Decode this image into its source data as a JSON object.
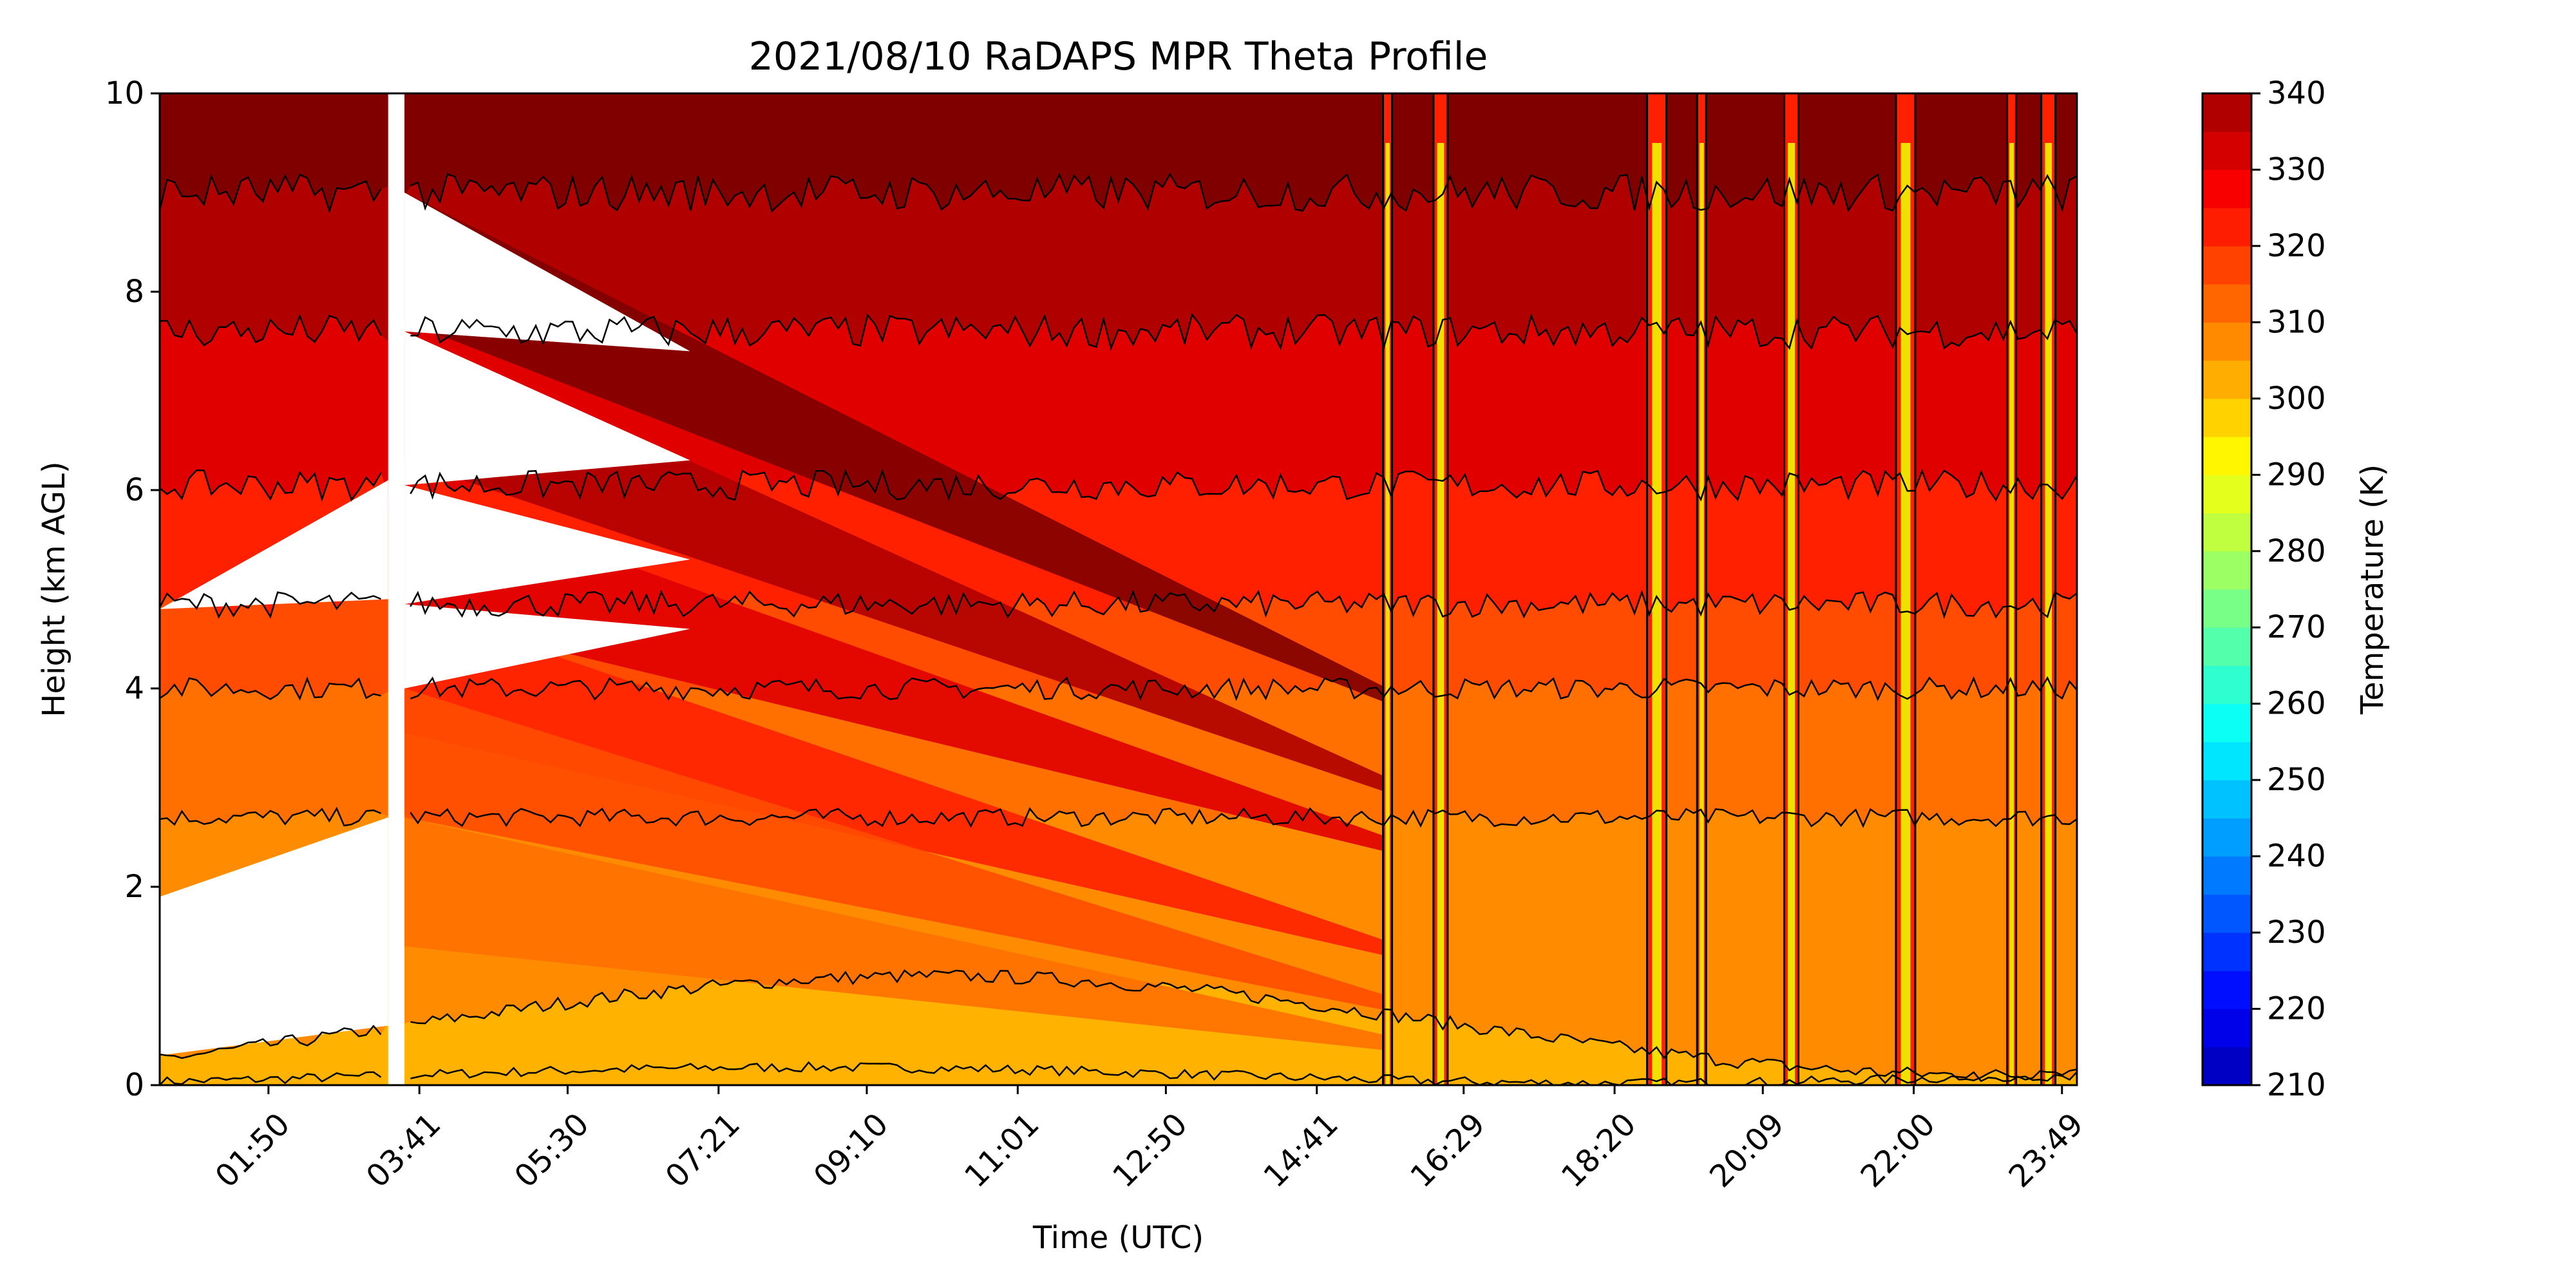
{
  "chart_data": {
    "type": "heatmap",
    "title": "2021/08/10 RaDAPS MPR Theta Profile",
    "xlabel": "Time (UTC)",
    "ylabel": "Height (km AGL)",
    "xlim_hours": [
      0.5,
      24.0
    ],
    "ylim": [
      0,
      10
    ],
    "x_ticks": [
      {
        "hour": 1.833,
        "label": "01:50"
      },
      {
        "hour": 3.683,
        "label": "03:41"
      },
      {
        "hour": 5.5,
        "label": "05:30"
      },
      {
        "hour": 7.35,
        "label": "07:21"
      },
      {
        "hour": 9.167,
        "label": "09:10"
      },
      {
        "hour": 11.017,
        "label": "11:01"
      },
      {
        "hour": 12.833,
        "label": "12:50"
      },
      {
        "hour": 14.683,
        "label": "14:41"
      },
      {
        "hour": 16.483,
        "label": "16:29"
      },
      {
        "hour": 18.333,
        "label": "18:20"
      },
      {
        "hour": 20.15,
        "label": "20:09"
      },
      {
        "hour": 22.0,
        "label": "22:00"
      },
      {
        "hour": 23.817,
        "label": "23:49"
      }
    ],
    "y_ticks": [
      "0",
      "2",
      "4",
      "6",
      "8",
      "10"
    ],
    "y_tick_values": [
      0,
      2,
      4,
      6,
      8,
      10
    ],
    "colorbar": {
      "label": "Temperature (K)",
      "range": [
        210,
        340
      ],
      "ticks": [
        "210",
        "220",
        "230",
        "240",
        "250",
        "260",
        "270",
        "280",
        "290",
        "300",
        "310",
        "320",
        "330",
        "340"
      ],
      "tick_values": [
        210,
        220,
        230,
        240,
        250,
        260,
        270,
        280,
        290,
        300,
        310,
        320,
        330,
        340
      ],
      "levels": [
        210,
        215,
        220,
        225,
        230,
        235,
        240,
        245,
        250,
        255,
        260,
        265,
        270,
        275,
        280,
        285,
        290,
        295,
        300,
        305,
        310,
        315,
        320,
        325,
        330,
        335,
        340
      ],
      "colormap": "jet"
    },
    "theta_bands": [
      {
        "range": [
          300,
          305
        ],
        "height_km": [
          0.0,
          0.6
        ],
        "color": "#ffb300"
      },
      {
        "range": [
          305,
          310
        ],
        "height_km": [
          0.6,
          2.6
        ],
        "color": "#ff8c00"
      },
      {
        "range": [
          310,
          315
        ],
        "height_km": [
          2.6,
          4.0
        ],
        "color": "#ff7000"
      },
      {
        "range": [
          315,
          320
        ],
        "height_km": [
          4.0,
          4.9
        ],
        "color": "#ff4c00"
      },
      {
        "range": [
          320,
          325
        ],
        "height_km": [
          4.9,
          6.1
        ],
        "color": "#ff2000"
      },
      {
        "range": [
          325,
          330
        ],
        "height_km": [
          6.1,
          7.6
        ],
        "color": "#e00000"
      },
      {
        "range": [
          330,
          335
        ],
        "height_km": [
          7.6,
          9.0
        ],
        "color": "#b00000"
      },
      {
        "range": [
          335,
          340
        ],
        "height_km": [
          9.0,
          10.0
        ],
        "color": "#800000"
      }
    ],
    "isentrope_heights_km": [
      0.1,
      0.6,
      2.7,
      4.0,
      4.85,
      6.05,
      7.6,
      9.0
    ],
    "data_gap_hours": [
      3.3,
      3.5
    ],
    "instability_columns_hours": [
      15.55,
      16.2,
      18.85,
      19.4,
      20.5,
      21.9,
      23.2,
      23.65
    ]
  }
}
